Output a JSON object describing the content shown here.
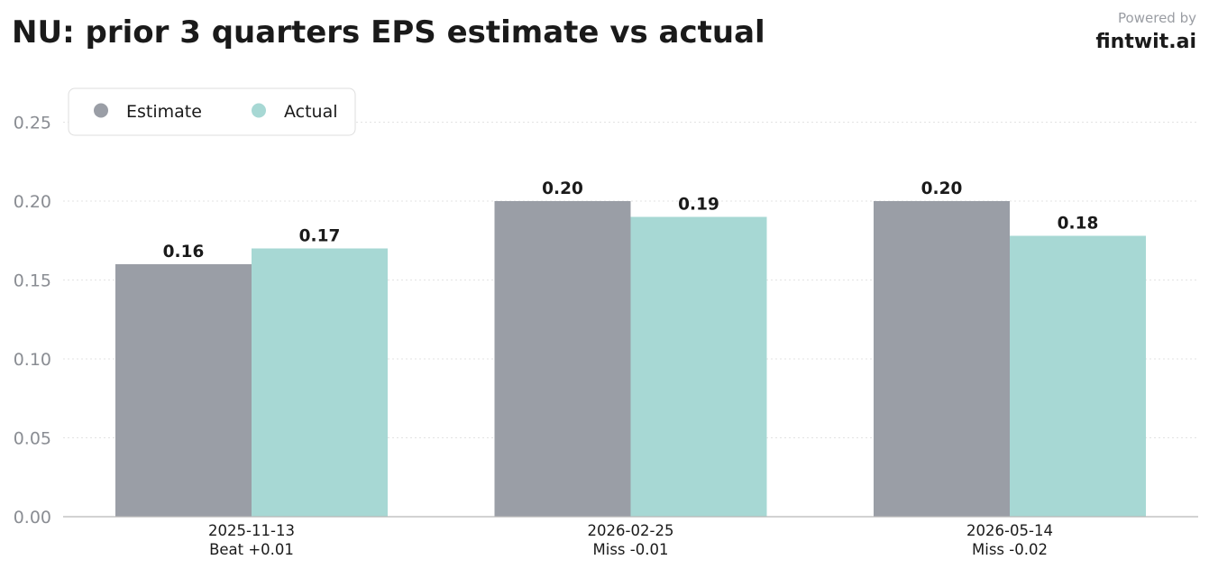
{
  "header": {
    "title": "NU: prior 3 quarters EPS estimate vs actual",
    "powered_by": "Powered by",
    "brand": "fintwit.ai"
  },
  "colors": {
    "estimate": "#9a9ea6",
    "actual": "#a7d8d4"
  },
  "chart_data": {
    "type": "bar",
    "title": "NU: prior 3 quarters EPS estimate vs actual",
    "categories": [
      "2025-11-13",
      "2026-02-25",
      "2026-05-14"
    ],
    "category_sublabels": [
      "Beat +0.01",
      "Miss -0.01",
      "Miss -0.02"
    ],
    "series": [
      {
        "name": "Estimate",
        "values": [
          0.16,
          0.2,
          0.2
        ],
        "labels": [
          "0.16",
          "0.20",
          "0.20"
        ]
      },
      {
        "name": "Actual",
        "values": [
          0.17,
          0.19,
          0.178
        ],
        "labels": [
          "0.17",
          "0.19",
          "0.18"
        ]
      }
    ],
    "ylim": [
      0,
      0.275
    ],
    "yticks": [
      0,
      0.05,
      0.1,
      0.15,
      0.2,
      0.25
    ],
    "ytick_labels": [
      "0.00",
      "0.05",
      "0.10",
      "0.15",
      "0.20",
      "0.25"
    ],
    "grid": true,
    "legend": "top-left"
  }
}
